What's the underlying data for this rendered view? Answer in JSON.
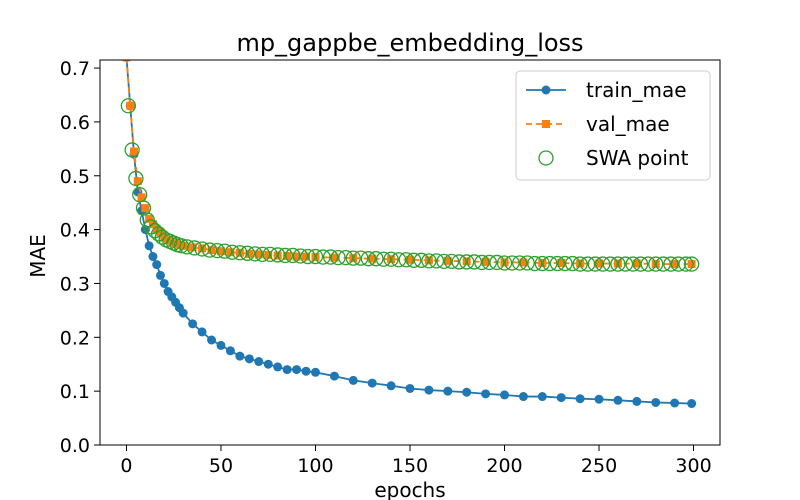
{
  "chart_data": {
    "type": "line",
    "title": "mp_gappbe_embedding_loss",
    "xlabel": "epochs",
    "ylabel": "MAE",
    "xlim": [
      -14,
      314
    ],
    "ylim": [
      0.0,
      0.715
    ],
    "xticks": [
      0,
      50,
      100,
      150,
      200,
      250,
      300
    ],
    "yticks": [
      0.0,
      0.1,
      0.2,
      0.3,
      0.4,
      0.5,
      0.6,
      0.7
    ],
    "grid": false,
    "legend_position": "top-right",
    "series": [
      {
        "name": "train_mae",
        "color": "#1f77b4",
        "marker": "circle",
        "line": "solid",
        "x": [
          0,
          2,
          4,
          6,
          8,
          10,
          12,
          14,
          16,
          18,
          20,
          22,
          24,
          26,
          28,
          30,
          35,
          40,
          45,
          50,
          55,
          60,
          65,
          70,
          75,
          80,
          85,
          90,
          95,
          100,
          110,
          120,
          130,
          140,
          150,
          160,
          170,
          180,
          190,
          200,
          210,
          220,
          230,
          240,
          250,
          260,
          270,
          280,
          290,
          299
        ],
        "y": [
          0.72,
          0.63,
          0.54,
          0.47,
          0.435,
          0.4,
          0.37,
          0.35,
          0.335,
          0.315,
          0.3,
          0.285,
          0.275,
          0.265,
          0.255,
          0.245,
          0.225,
          0.21,
          0.195,
          0.185,
          0.175,
          0.165,
          0.16,
          0.155,
          0.15,
          0.145,
          0.14,
          0.14,
          0.137,
          0.135,
          0.128,
          0.12,
          0.115,
          0.11,
          0.105,
          0.102,
          0.1,
          0.098,
          0.095,
          0.093,
          0.09,
          0.09,
          0.088,
          0.086,
          0.085,
          0.083,
          0.081,
          0.079,
          0.078,
          0.077
        ]
      },
      {
        "name": "val_mae",
        "color": "#ff7f0e",
        "marker": "square",
        "line": "dashed",
        "x": [
          0,
          2,
          4,
          6,
          8,
          10,
          12,
          14,
          16,
          18,
          20,
          22,
          24,
          26,
          28,
          30,
          35,
          40,
          45,
          50,
          55,
          60,
          65,
          70,
          75,
          80,
          85,
          90,
          95,
          100,
          110,
          120,
          130,
          140,
          150,
          160,
          170,
          180,
          190,
          200,
          210,
          220,
          230,
          240,
          250,
          260,
          270,
          280,
          290,
          299
        ],
        "y": [
          0.72,
          0.63,
          0.545,
          0.49,
          0.46,
          0.44,
          0.42,
          0.41,
          0.4,
          0.395,
          0.385,
          0.38,
          0.378,
          0.375,
          0.372,
          0.37,
          0.367,
          0.365,
          0.362,
          0.36,
          0.358,
          0.357,
          0.355,
          0.354,
          0.353,
          0.352,
          0.351,
          0.35,
          0.35,
          0.349,
          0.348,
          0.347,
          0.346,
          0.345,
          0.344,
          0.343,
          0.342,
          0.341,
          0.34,
          0.339,
          0.339,
          0.338,
          0.338,
          0.337,
          0.337,
          0.337,
          0.337,
          0.336,
          0.336,
          0.336
        ]
      },
      {
        "name": "SWA point",
        "color": "#2ca02c",
        "marker": "open-circle",
        "line": "none",
        "x": [
          1,
          3,
          5,
          7,
          9,
          11,
          13,
          15,
          17,
          19,
          21,
          23,
          25,
          27,
          29,
          32,
          36,
          40,
          44,
          48,
          52,
          56,
          60,
          64,
          68,
          72,
          76,
          80,
          84,
          88,
          92,
          96,
          100,
          104,
          108,
          112,
          116,
          120,
          124,
          128,
          132,
          136,
          140,
          144,
          148,
          152,
          156,
          160,
          164,
          168,
          172,
          176,
          180,
          184,
          188,
          192,
          196,
          200,
          204,
          208,
          212,
          216,
          220,
          224,
          228,
          232,
          236,
          240,
          244,
          248,
          252,
          256,
          260,
          264,
          268,
          272,
          276,
          280,
          284,
          288,
          292,
          296,
          299
        ],
        "y": [
          0.63,
          0.548,
          0.495,
          0.465,
          0.44,
          0.418,
          0.405,
          0.398,
          0.392,
          0.386,
          0.381,
          0.378,
          0.375,
          0.372,
          0.37,
          0.368,
          0.366,
          0.364,
          0.362,
          0.361,
          0.36,
          0.358,
          0.357,
          0.356,
          0.355,
          0.354,
          0.354,
          0.353,
          0.352,
          0.352,
          0.351,
          0.35,
          0.35,
          0.349,
          0.349,
          0.348,
          0.348,
          0.347,
          0.347,
          0.346,
          0.346,
          0.345,
          0.345,
          0.344,
          0.344,
          0.343,
          0.343,
          0.342,
          0.342,
          0.341,
          0.341,
          0.34,
          0.34,
          0.34,
          0.339,
          0.339,
          0.339,
          0.338,
          0.338,
          0.338,
          0.338,
          0.337,
          0.337,
          0.337,
          0.337,
          0.337,
          0.337,
          0.336,
          0.336,
          0.336,
          0.336,
          0.336,
          0.336,
          0.336,
          0.336,
          0.336,
          0.336,
          0.336,
          0.336,
          0.336,
          0.336,
          0.336,
          0.336
        ]
      }
    ]
  }
}
